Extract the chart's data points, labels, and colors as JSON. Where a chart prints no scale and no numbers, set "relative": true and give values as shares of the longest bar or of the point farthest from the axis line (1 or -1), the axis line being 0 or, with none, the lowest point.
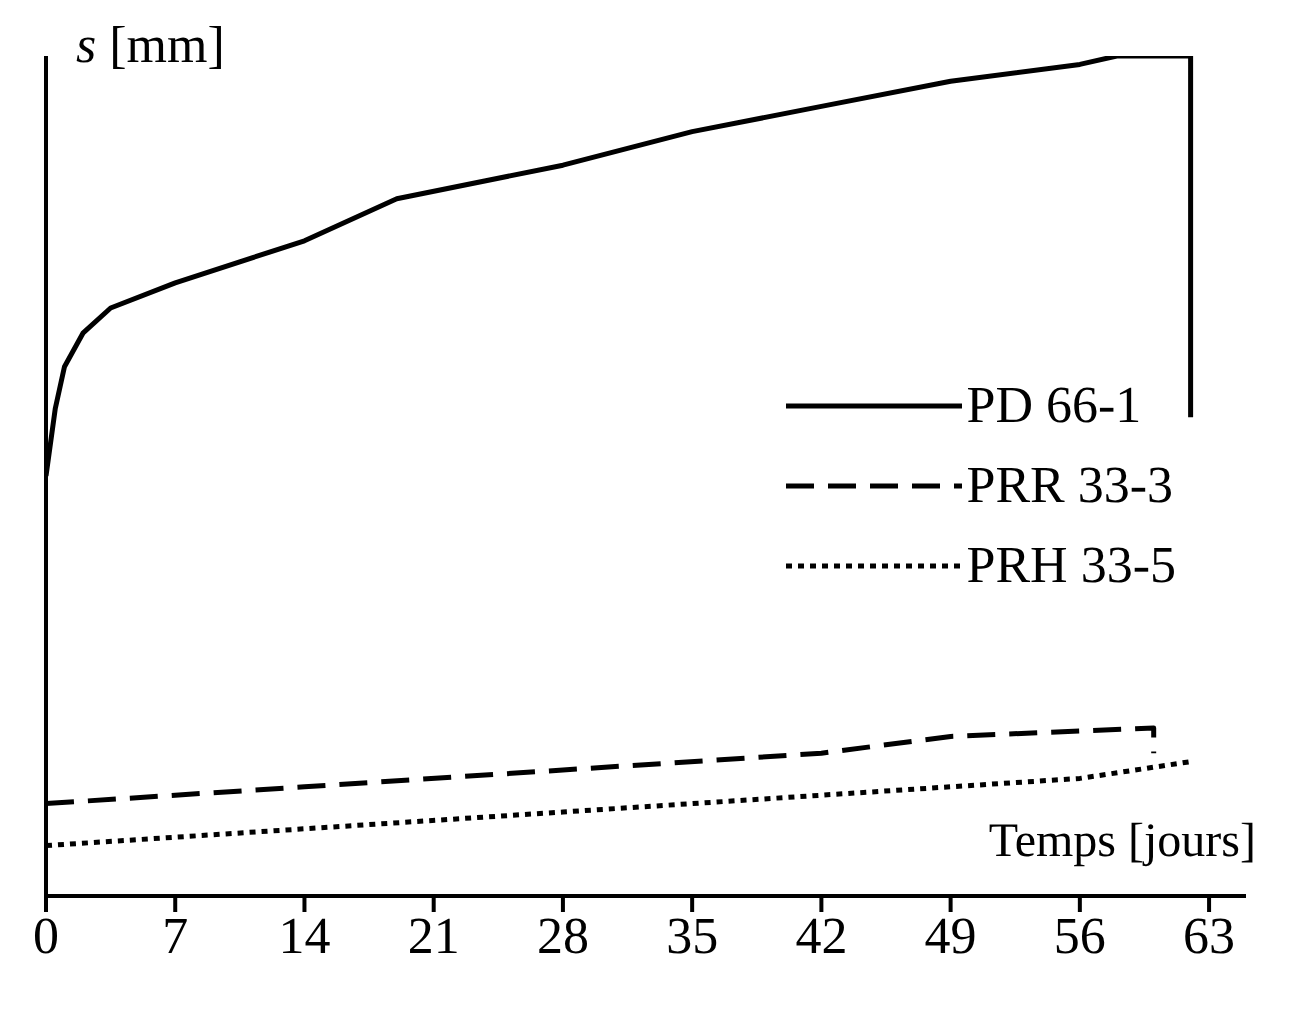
{
  "chart_data": {
    "type": "line",
    "relative": true,
    "ylabel": "s [mm]",
    "xlabel": "Temps [jours]",
    "xlim": [
      0,
      65
    ],
    "xticks": [
      0,
      7,
      14,
      21,
      28,
      35,
      42,
      49,
      56,
      63
    ],
    "legend": "right",
    "marker": "none",
    "series": [
      {
        "name": "PD 66-1",
        "color": "#000000",
        "line_style": "solid",
        "x": [
          0,
          0.5,
          1,
          2,
          3.5,
          7,
          14,
          19,
          28,
          35,
          42,
          49,
          56,
          58,
          62,
          62
        ],
        "values": [
          0.5,
          0.58,
          0.63,
          0.67,
          0.7,
          0.73,
          0.78,
          0.83,
          0.87,
          0.91,
          0.94,
          0.97,
          0.99,
          1,
          1,
          0.57
        ]
      },
      {
        "name": "PRR 33-3",
        "color": "#000000",
        "line_style": "dashed",
        "x": [
          0,
          14,
          28,
          42,
          49,
          60,
          60
        ],
        "values": [
          0.11,
          0.13,
          0.15,
          0.17,
          0.19,
          0.2,
          0.17
        ]
      },
      {
        "name": "PRH 33-5",
        "color": "#000000",
        "line_style": "dotted",
        "x": [
          0,
          14,
          28,
          42,
          56,
          62
        ],
        "values": [
          0.06,
          0.08,
          0.1,
          0.12,
          0.14,
          0.16
        ]
      }
    ]
  }
}
